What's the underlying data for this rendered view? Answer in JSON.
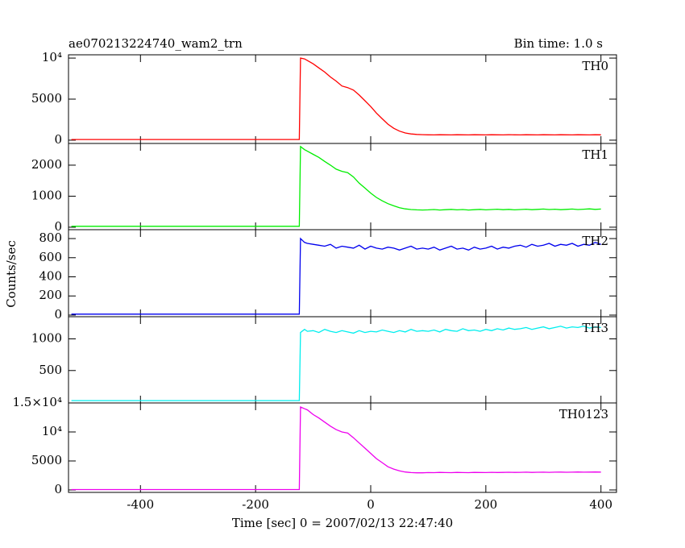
{
  "chart_data": [
    {
      "type": "line",
      "title": "ae070213224740_wam2_trn",
      "subtitle": "Bin time: 1.0 s",
      "x": [
        -520,
        -124,
        -122,
        -115,
        -110,
        -100,
        -90,
        -80,
        -70,
        -60,
        -50,
        -40,
        -30,
        -20,
        -10,
        0,
        10,
        20,
        30,
        40,
        50,
        60,
        70,
        80,
        90,
        100,
        110,
        120,
        130,
        140,
        150,
        160,
        170,
        180,
        190,
        200,
        210,
        220,
        230,
        240,
        250,
        260,
        270,
        280,
        290,
        300,
        310,
        320,
        330,
        340,
        350,
        360,
        370,
        380,
        390,
        400
      ],
      "series": [
        {
          "name": "TH0",
          "color": "#ff0000",
          "values": [
            80,
            80,
            10000,
            9900,
            9700,
            9300,
            8800,
            8300,
            7700,
            7200,
            6600,
            6400,
            6100,
            5500,
            4800,
            4100,
            3300,
            2600,
            1950,
            1450,
            1100,
            880,
            760,
            700,
            670,
            650,
            640,
            660,
            650,
            640,
            660,
            650,
            640,
            660,
            650,
            640,
            660,
            650,
            640,
            660,
            650,
            640,
            660,
            650,
            640,
            660,
            650,
            640,
            660,
            650,
            640,
            660,
            650,
            640,
            660,
            650
          ]
        }
      ],
      "xlim": [
        -525,
        427
      ],
      "xticks": [
        -400,
        -200,
        0,
        200,
        400
      ],
      "ylim": [
        -400,
        10400
      ],
      "yticks": [
        0,
        5000,
        {
          "value": 10000,
          "label": "10⁴"
        }
      ]
    },
    {
      "type": "line",
      "x": [
        -520,
        -124,
        -122,
        -115,
        -110,
        -100,
        -90,
        -80,
        -70,
        -60,
        -50,
        -40,
        -30,
        -20,
        -10,
        0,
        10,
        20,
        30,
        40,
        50,
        60,
        70,
        80,
        90,
        100,
        110,
        120,
        130,
        140,
        150,
        160,
        170,
        180,
        190,
        200,
        210,
        220,
        230,
        240,
        250,
        260,
        270,
        280,
        290,
        300,
        310,
        320,
        330,
        340,
        350,
        360,
        370,
        380,
        390,
        400
      ],
      "series": [
        {
          "name": "TH1",
          "color": "#00ee00",
          "values": [
            30,
            30,
            2600,
            2500,
            2450,
            2350,
            2250,
            2120,
            2000,
            1870,
            1800,
            1760,
            1620,
            1420,
            1260,
            1100,
            960,
            850,
            760,
            690,
            630,
            590,
            570,
            560,
            555,
            560,
            570,
            555,
            565,
            575,
            560,
            570,
            555,
            565,
            575,
            560,
            570,
            580,
            565,
            575,
            560,
            570,
            580,
            565,
            575,
            585,
            570,
            580,
            565,
            575,
            585,
            570,
            580,
            590,
            575,
            585
          ]
        }
      ],
      "xlim": [
        -525,
        427
      ],
      "xticks": [
        -400,
        -200,
        0,
        200,
        400
      ],
      "ylim": [
        -80,
        2700
      ],
      "yticks": [
        0,
        1000,
        2000
      ]
    },
    {
      "type": "line",
      "ylabel": "Counts/sec",
      "x": [
        -520,
        -124,
        -122,
        -115,
        -110,
        -100,
        -90,
        -80,
        -70,
        -60,
        -50,
        -40,
        -30,
        -20,
        -10,
        0,
        10,
        20,
        30,
        40,
        50,
        60,
        70,
        80,
        90,
        100,
        110,
        120,
        130,
        140,
        150,
        160,
        170,
        180,
        190,
        200,
        210,
        220,
        230,
        240,
        250,
        260,
        270,
        280,
        290,
        300,
        310,
        320,
        330,
        340,
        350,
        360,
        370,
        380,
        390,
        400
      ],
      "series": [
        {
          "name": "TH2",
          "color": "#0000ee",
          "values": [
            10,
            10,
            800,
            760,
            750,
            740,
            730,
            720,
            740,
            700,
            720,
            710,
            700,
            730,
            690,
            720,
            700,
            690,
            710,
            700,
            680,
            700,
            720,
            690,
            700,
            690,
            710,
            680,
            700,
            720,
            690,
            700,
            680,
            710,
            690,
            700,
            720,
            690,
            710,
            700,
            720,
            730,
            710,
            740,
            720,
            730,
            750,
            720,
            740,
            730,
            750,
            720,
            740,
            730,
            760,
            740
          ]
        }
      ],
      "xlim": [
        -525,
        427
      ],
      "xticks": [
        -400,
        -200,
        0,
        200,
        400
      ],
      "ylim": [
        -17,
        893
      ],
      "yticks": [
        0,
        200,
        400,
        600,
        800
      ]
    },
    {
      "type": "line",
      "x": [
        -520,
        -124,
        -122,
        -115,
        -110,
        -100,
        -90,
        -80,
        -70,
        -60,
        -50,
        -40,
        -30,
        -20,
        -10,
        0,
        10,
        20,
        30,
        40,
        50,
        60,
        70,
        80,
        90,
        100,
        110,
        120,
        130,
        140,
        150,
        160,
        170,
        180,
        190,
        200,
        210,
        220,
        230,
        240,
        250,
        260,
        270,
        280,
        290,
        300,
        310,
        320,
        330,
        340,
        350,
        360,
        370,
        380,
        390,
        400
      ],
      "series": [
        {
          "name": "TH3",
          "color": "#00eeee",
          "values": [
            25,
            25,
            1100,
            1150,
            1120,
            1130,
            1100,
            1150,
            1120,
            1100,
            1130,
            1110,
            1090,
            1130,
            1100,
            1120,
            1110,
            1140,
            1120,
            1100,
            1130,
            1110,
            1150,
            1120,
            1130,
            1120,
            1140,
            1110,
            1150,
            1130,
            1120,
            1160,
            1130,
            1140,
            1120,
            1150,
            1130,
            1160,
            1140,
            1170,
            1150,
            1160,
            1180,
            1150,
            1170,
            1190,
            1160,
            1180,
            1200,
            1170,
            1190,
            1180,
            1200,
            1170,
            1190,
            1180
          ]
        }
      ],
      "xlim": [
        -525,
        427
      ],
      "xticks": [
        -400,
        -200,
        0,
        200,
        400
      ],
      "ylim": [
        -12,
        1350
      ],
      "yticks": [
        500,
        1000
      ]
    },
    {
      "type": "line",
      "xlabel": "Time [sec] 0 = 2007/02/13 22:47:40",
      "x": [
        -520,
        -124,
        -122,
        -115,
        -110,
        -100,
        -90,
        -80,
        -70,
        -60,
        -50,
        -40,
        -30,
        -20,
        -10,
        0,
        10,
        20,
        30,
        40,
        50,
        60,
        70,
        80,
        90,
        100,
        110,
        120,
        130,
        140,
        150,
        160,
        170,
        180,
        190,
        200,
        210,
        220,
        230,
        240,
        250,
        260,
        270,
        280,
        290,
        300,
        310,
        320,
        330,
        340,
        350,
        360,
        370,
        380,
        390,
        400
      ],
      "series": [
        {
          "name": "TH0123",
          "color": "#ee00ee",
          "values": [
            60,
            60,
            14300,
            14000,
            13800,
            13000,
            12400,
            11700,
            11000,
            10400,
            10000,
            9800,
            9000,
            8100,
            7200,
            6300,
            5400,
            4700,
            4000,
            3600,
            3300,
            3100,
            3000,
            2950,
            2950,
            3000,
            2980,
            3020,
            3000,
            2980,
            3020,
            3000,
            2990,
            3030,
            3010,
            3000,
            3040,
            3010,
            3030,
            3050,
            3020,
            3040,
            3060,
            3030,
            3050,
            3070,
            3040,
            3060,
            3080,
            3050,
            3070,
            3090,
            3060,
            3080,
            3100,
            3080
          ]
        }
      ],
      "xlim": [
        -525,
        427
      ],
      "xticks": [
        -400,
        -200,
        0,
        200,
        400
      ],
      "ylim": [
        -420,
        15000
      ],
      "yticks": [
        0,
        5000,
        {
          "value": 10000,
          "label": "10⁴"
        },
        {
          "value": 15000,
          "label": "1.5×10⁴"
        }
      ]
    }
  ]
}
